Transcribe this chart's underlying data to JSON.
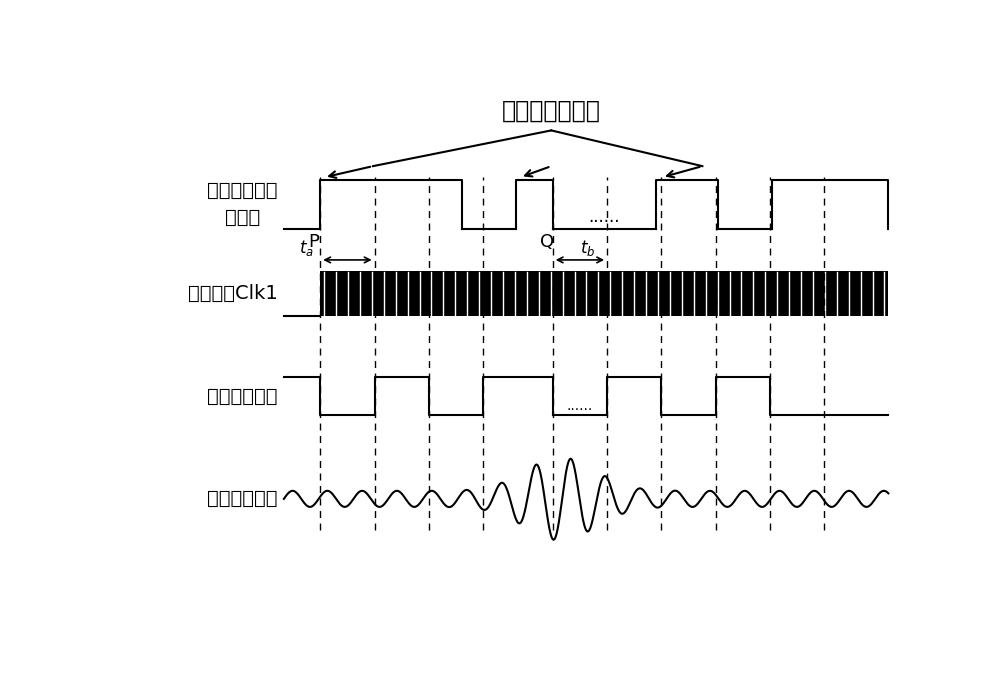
{
  "title": "激光干涉过零点",
  "bg_color": "#ffffff",
  "line_color": "#000000",
  "label1": "激光干涉过零\n点脉冲",
  "label2": "高频时钟Clk1",
  "label3": "细分后子脉冲",
  "label4": "红外干涉信号",
  "P_label": "P",
  "Q_label": "Q",
  "ta_label": "$t_a$",
  "tb_label": "$t_b$",
  "font_size_title": 17,
  "font_size_label": 14,
  "font_size_pq": 13
}
